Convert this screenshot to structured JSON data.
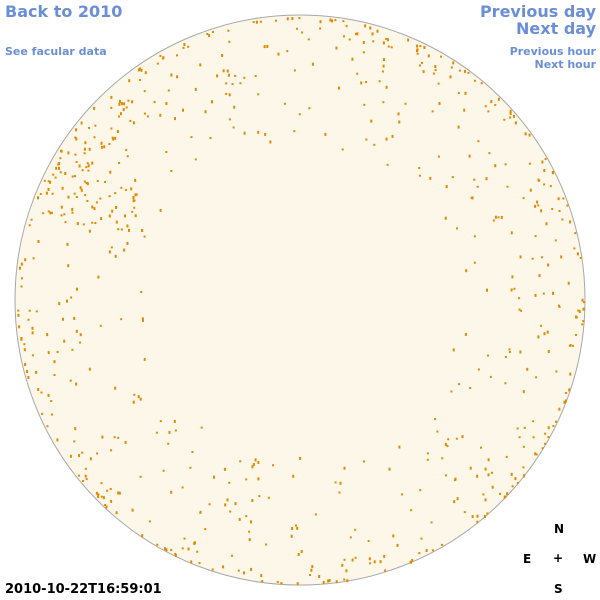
{
  "header": {
    "back_link": "Back to 2010",
    "data_link": "See facular data",
    "prev_day": "Previous day",
    "next_day": "Next day",
    "prev_hour": "Previous hour",
    "next_hour": "Next hour"
  },
  "timestamp": "2010-10-22T16:59:01",
  "compass": {
    "north": "N",
    "east": "E",
    "center": "+",
    "west": "W",
    "south": "S"
  }
}
